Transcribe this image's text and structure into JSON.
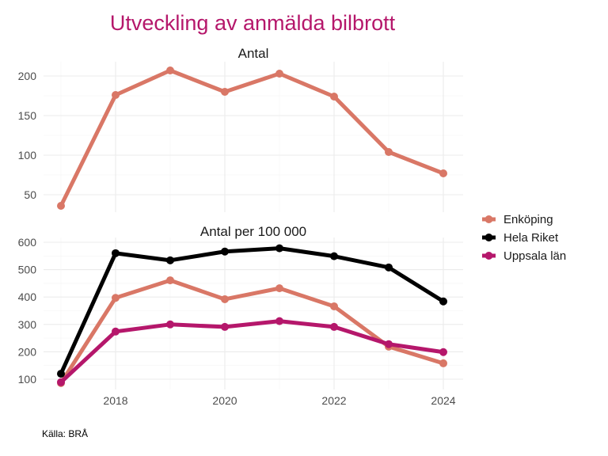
{
  "title": "Utveckling av anmälda bilbrott",
  "source": "Källa: BRÅ",
  "chart_data": [
    {
      "type": "line",
      "title": "Antal",
      "x": [
        2017,
        2018,
        2019,
        2020,
        2021,
        2022,
        2023,
        2024
      ],
      "xticks": [
        2018,
        2020,
        2022,
        2024
      ],
      "yticks": [
        50,
        100,
        150,
        200
      ],
      "ylim": [
        30,
        213
      ],
      "grid": true,
      "series": [
        {
          "name": "Enköping",
          "color": "#d97766",
          "values": [
            36,
            176,
            207,
            180,
            203,
            174,
            104,
            77
          ]
        }
      ]
    },
    {
      "type": "line",
      "title": "Antal per 100 000",
      "x": [
        2017,
        2018,
        2019,
        2020,
        2021,
        2022,
        2023,
        2024
      ],
      "xticks": [
        2018,
        2020,
        2022,
        2024
      ],
      "yticks": [
        100,
        200,
        300,
        400,
        500,
        600
      ],
      "ylim": [
        60,
        605
      ],
      "grid": true,
      "legend": "right",
      "series": [
        {
          "name": "Enköping",
          "color": "#d97766",
          "values": [
            86,
            397,
            461,
            392,
            432,
            366,
            219,
            158
          ]
        },
        {
          "name": "Hela Riket",
          "color": "#000000",
          "values": [
            120,
            560,
            534,
            566,
            578,
            549,
            508,
            384
          ]
        },
        {
          "name": "Uppsala län",
          "color": "#b5176b",
          "values": [
            89,
            274,
            300,
            291,
            312,
            291,
            228,
            199
          ]
        }
      ]
    }
  ]
}
